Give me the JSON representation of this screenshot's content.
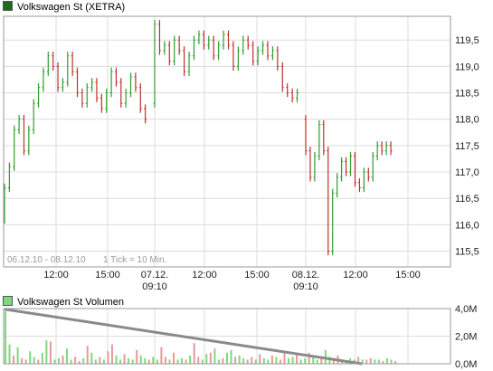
{
  "price_legend": {
    "label": "Volkswagen St (XETRA)",
    "color": "#1e6b1e"
  },
  "volume_legend": {
    "label": "Volkswagen St Volumen",
    "color": "#7ed87e"
  },
  "date_range": "06.12.10 - 08.12.10",
  "tick_info": "1 Tick = 10 Min.",
  "colors": {
    "up": "#2f9e2f",
    "down": "#c03030",
    "volume_up": "#7ed87e",
    "volume_down": "#e59a9a",
    "volume_trend": "#8a8a8a",
    "grid": "#dcdcdc",
    "frame": "#9a9a9a"
  },
  "chart_data": [
    {
      "type": "candlestick",
      "title": "Volkswagen St (XETRA)",
      "x_tick_labels": [
        {
          "line1": "12:00",
          "line2": ""
        },
        {
          "line1": "15:00",
          "line2": ""
        },
        {
          "line1": "07.12.",
          "line2": "09:10"
        },
        {
          "line1": "12:00",
          "line2": ""
        },
        {
          "line1": "15:00",
          "line2": ""
        },
        {
          "line1": "08.12.",
          "line2": "09:10"
        },
        {
          "line1": "12:00",
          "line2": ""
        },
        {
          "line1": "15:00",
          "line2": ""
        }
      ],
      "y_ticks": [
        "115,5",
        "116,0",
        "116,5",
        "117,0",
        "117,5",
        "118,0",
        "118,5",
        "119,0",
        "119,5"
      ],
      "ylim": [
        115.2,
        119.95
      ],
      "days": [
        {
          "date": "06.12.10",
          "prices": [
            116.1,
            116.7,
            117.1,
            117.8,
            118.0,
            117.4,
            117.8,
            118.3,
            118.6,
            118.9,
            119.2,
            119.0,
            118.6,
            118.7,
            119.2,
            118.9,
            118.5,
            118.3,
            118.6,
            118.7,
            118.4,
            118.2,
            118.5,
            118.9,
            118.7,
            118.3,
            118.5,
            118.8,
            118.6,
            118.2,
            118.0
          ]
        },
        {
          "date": "07.12.10",
          "prices": [
            118.3,
            119.8,
            119.3,
            119.4,
            119.1,
            119.5,
            119.3,
            118.9,
            119.2,
            119.5,
            119.6,
            119.4,
            119.5,
            119.2,
            119.4,
            119.6,
            119.4,
            119.0,
            119.3,
            119.5,
            119.4,
            119.1,
            119.3,
            119.4,
            119.2,
            119.3,
            119.0,
            118.6,
            118.5,
            118.4,
            118.5
          ]
        },
        {
          "date": "08.12.10",
          "prices": [
            118.0,
            117.4,
            116.9,
            117.3,
            117.9,
            117.4,
            115.5,
            116.6,
            116.9,
            117.2,
            117.0,
            117.3,
            116.8,
            116.7,
            117.0,
            116.9,
            117.3,
            117.5,
            117.4,
            117.5,
            117.4
          ]
        }
      ]
    },
    {
      "type": "bar",
      "title": "Volkswagen St Volumen",
      "y_ticks": [
        "0,0M",
        "2,0M",
        "4,0M"
      ],
      "ylim": [
        0,
        4.0
      ],
      "unit": "M",
      "values": [
        3.8,
        1.4,
        0.6,
        1.2,
        0.4,
        0.3,
        0.9,
        0.5,
        0.3,
        0.8,
        1.7,
        1.6,
        0.3,
        0.4,
        0.6,
        1.1,
        0.3,
        0.5,
        0.2,
        0.4,
        1.3,
        0.8,
        0.3,
        0.5,
        0.3,
        0.9,
        1.4,
        0.6,
        0.3,
        0.7,
        0.4,
        0.3,
        1.0,
        0.6,
        0.4,
        0.3,
        0.5,
        0.3,
        1.2,
        0.5,
        0.3,
        0.8,
        0.3,
        0.4,
        0.3,
        0.6,
        1.5,
        0.5,
        0.3,
        0.7,
        0.8,
        1.1,
        0.3,
        0.4,
        0.8,
        1.0,
        0.5,
        0.6,
        0.4,
        0.3,
        0.5,
        0.3,
        0.7,
        0.4,
        0.3,
        0.6,
        0.5,
        0.3,
        0.9,
        0.4,
        0.5,
        0.7,
        0.3,
        0.4,
        0.8,
        0.5,
        0.3,
        0.5,
        1.0,
        0.5,
        0.4,
        0.6,
        0.3,
        0.2,
        0.4,
        0.3,
        0.5,
        0.3,
        0.3,
        0.4,
        0.3,
        0.3,
        0.2,
        0.4,
        0.3,
        0.2
      ],
      "trend": [
        3.95,
        0.0
      ]
    }
  ]
}
